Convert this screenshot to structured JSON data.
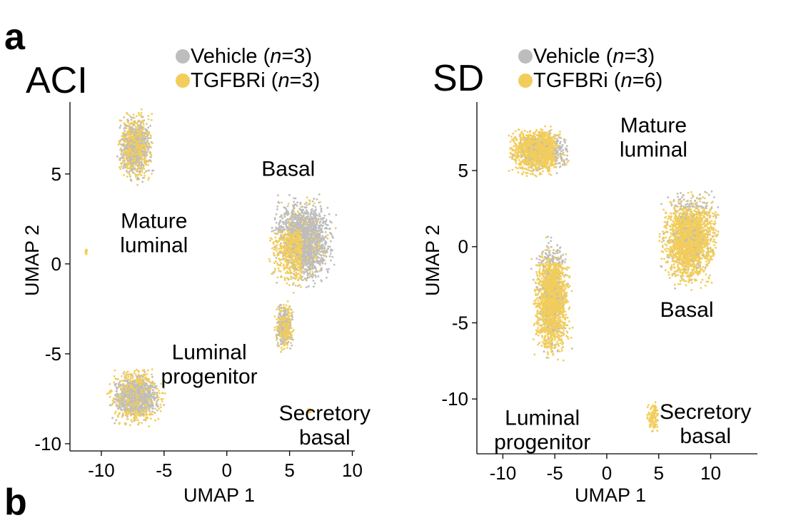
{
  "panel_labels": {
    "a": "a",
    "b": "b"
  },
  "colors": {
    "vehicle": "#bdbdbd",
    "tgfbri": "#f2cd5c",
    "axis": "#000000"
  },
  "chart_data": [
    {
      "type": "scatter",
      "title": "ACI",
      "xlabel": "UMAP 1",
      "ylabel": "UMAP 2",
      "xlim": [
        -12.5,
        10.2
      ],
      "ylim": [
        -10.4,
        9
      ],
      "xticks": [
        -10,
        -5,
        0,
        5,
        10
      ],
      "yticks": [
        -10,
        -5,
        0,
        5
      ],
      "legend": {
        "placement": "top-center",
        "entries": [
          {
            "pre": "Vehicle (",
            "italic": "n",
            "post": "=3)",
            "color": "#bdbdbd"
          },
          {
            "pre": "TGFBRi (",
            "italic": "n",
            "post": "=3)",
            "color": "#f2cd5c"
          }
        ]
      },
      "clusters": [
        {
          "name": "Mature luminal",
          "label_lines": [
            "Mature",
            "luminal"
          ],
          "label_pos": [
            -5.8,
            2.0
          ],
          "center": [
            -7.3,
            6.5
          ],
          "spread": [
            1.6,
            2.2
          ],
          "mix": 0.55,
          "points": 1300,
          "gradient": "none"
        },
        {
          "name": "Basal",
          "label_lines": [
            "Basal"
          ],
          "label_pos": [
            4.9,
            4.9
          ],
          "center": [
            6.0,
            1.2
          ],
          "spread": [
            2.9,
            2.9
          ],
          "mix": 0.4,
          "points": 2200,
          "gradient": "tgfbri-lower-left"
        },
        {
          "name": "Basal tail",
          "label_lines": [],
          "label_pos": null,
          "center": [
            4.6,
            -3.5
          ],
          "spread": [
            0.9,
            1.6
          ],
          "mix": 0.6,
          "points": 500,
          "gradient": "none"
        },
        {
          "name": "Luminal progenitor",
          "label_lines": [
            "Luminal",
            "progenitor"
          ],
          "label_pos": [
            -1.4,
            -5.3
          ],
          "center": [
            -7.2,
            -7.4
          ],
          "spread": [
            2.5,
            1.8
          ],
          "mix": 0.55,
          "points": 1300,
          "gradient": "tgfbri-outer"
        },
        {
          "name": "Secretory basal",
          "label_lines": [
            "Secretory",
            "basal"
          ],
          "label_pos": [
            7.8,
            -8.7
          ],
          "center": [
            6.6,
            -8.2
          ],
          "spread": [
            0.2,
            0.15
          ],
          "mix": 1.0,
          "points": 25,
          "gradient": "none"
        },
        {
          "name": "stray",
          "label_lines": [],
          "label_pos": null,
          "center": [
            -11.2,
            0.7
          ],
          "spread": [
            0.15,
            0.2
          ],
          "mix": 1.0,
          "points": 15,
          "gradient": "none"
        }
      ]
    },
    {
      "type": "scatter",
      "title": "SD",
      "xlabel": "UMAP 1",
      "ylabel": "UMAP 2",
      "xlim": [
        -12.5,
        14.5
      ],
      "ylim": [
        -13.6,
        9.5
      ],
      "xticks": [
        -10,
        -5,
        0,
        5,
        10
      ],
      "yticks": [
        -10,
        -5,
        0,
        5
      ],
      "legend": {
        "placement": "top-center",
        "entries": [
          {
            "pre": "Vehicle (",
            "italic": "n",
            "post": "=3)",
            "color": "#bdbdbd"
          },
          {
            "pre": "TGFBRi (",
            "italic": "n",
            "post": "=6)",
            "color": "#f2cd5c"
          }
        ]
      },
      "clusters": [
        {
          "name": "Mature luminal",
          "label_lines": [
            "Mature",
            "luminal"
          ],
          "label_pos": [
            4.5,
            7.5
          ],
          "center": [
            -6.6,
            6.3
          ],
          "spread": [
            3.3,
            1.8
          ],
          "mix": 0.8,
          "points": 1600,
          "gradient": "vehicle-right"
        },
        {
          "name": "Basal",
          "label_lines": [
            "Basal"
          ],
          "label_pos": [
            7.7,
            -4.6
          ],
          "center": [
            8.0,
            0.5
          ],
          "spread": [
            3.2,
            3.6
          ],
          "mix": 0.8,
          "points": 2200,
          "gradient": "vehicle-top"
        },
        {
          "name": "Luminal progenitor",
          "label_lines": [
            "Luminal",
            "progenitor"
          ],
          "label_pos": [
            -6.2,
            -11.7
          ],
          "center": [
            -5.3,
            -3.5
          ],
          "spread": [
            2.1,
            4.4
          ],
          "mix": 0.8,
          "points": 2000,
          "gradient": "vehicle-top"
        },
        {
          "name": "Secretory basal",
          "label_lines": [
            "Secretory",
            "basal"
          ],
          "label_pos": [
            9.5,
            -11.3
          ],
          "center": [
            4.5,
            -11.2
          ],
          "spread": [
            0.8,
            1.3
          ],
          "mix": 1.0,
          "points": 120,
          "gradient": "none"
        }
      ]
    }
  ]
}
